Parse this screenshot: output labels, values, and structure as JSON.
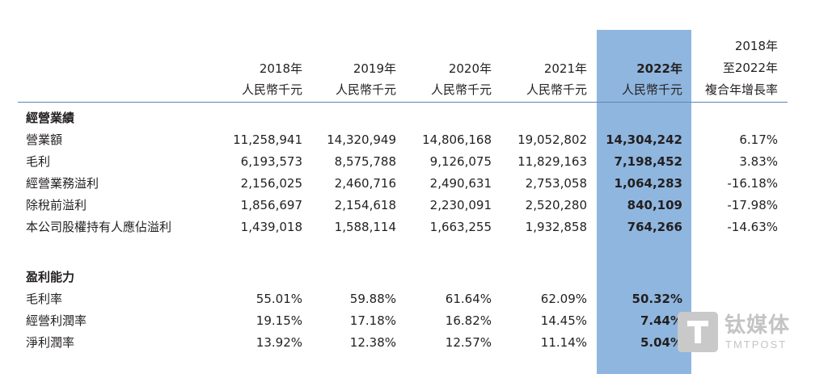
{
  "headers": {
    "c2018": {
      "year": "2018年",
      "unit": "人民幣千元"
    },
    "c2019": {
      "year": "2019年",
      "unit": "人民幣千元"
    },
    "c2020": {
      "year": "2020年",
      "unit": "人民幣千元"
    },
    "c2021": {
      "year": "2021年",
      "unit": "人民幣千元"
    },
    "c2022": {
      "year": "2022年",
      "unit": "人民幣千元"
    },
    "cagr": {
      "line1": "2018年",
      "line2": "至2022年",
      "line3": "複合年增長率"
    }
  },
  "sections": [
    {
      "title": "經營業績",
      "rows": [
        {
          "label": "營業額",
          "values": [
            "11,258,941",
            "14,320,949",
            "14,806,168",
            "19,052,802",
            "14,304,242",
            "6.17%"
          ]
        },
        {
          "label": "毛利",
          "values": [
            "6,193,573",
            "8,575,788",
            "9,126,075",
            "11,829,163",
            "7,198,452",
            "3.83%"
          ]
        },
        {
          "label": "經營業務溢利",
          "values": [
            "2,156,025",
            "2,460,716",
            "2,490,631",
            "2,753,058",
            "1,064,283",
            "-16.18%"
          ]
        },
        {
          "label": "除稅前溢利",
          "values": [
            "1,856,697",
            "2,154,618",
            "2,230,091",
            "2,520,280",
            "840,109",
            "-17.98%"
          ]
        },
        {
          "label": "本公司股權持有人應佔溢利",
          "values": [
            "1,439,018",
            "1,588,114",
            "1,663,255",
            "1,932,858",
            "764,266",
            "-14.63%"
          ]
        }
      ]
    },
    {
      "title": "盈利能力",
      "rows": [
        {
          "label": "毛利率",
          "values": [
            "55.01%",
            "59.88%",
            "61.64%",
            "62.09%",
            "50.32%",
            ""
          ]
        },
        {
          "label": "經營利潤率",
          "values": [
            "19.15%",
            "17.18%",
            "16.82%",
            "14.45%",
            "7.44%",
            ""
          ]
        },
        {
          "label": "淨利潤率",
          "values": [
            "13.92%",
            "12.38%",
            "12.57%",
            "11.14%",
            "5.04%",
            ""
          ]
        }
      ]
    }
  ],
  "watermark": {
    "cn": "钛媒体",
    "en": "TMTPOST"
  },
  "colors": {
    "highlight": "#8fb6de",
    "rule": "#5b86b8"
  }
}
